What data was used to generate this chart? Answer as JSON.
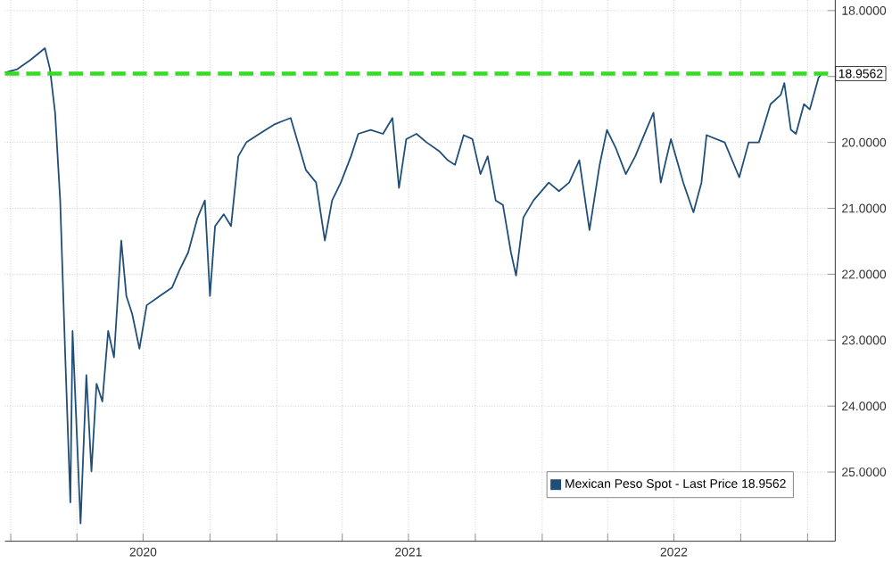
{
  "chart_data": {
    "type": "line",
    "x": [
      "2019-12-24",
      "2020-01-10",
      "2020-01-28",
      "2020-02-17",
      "2020-02-24",
      "2020-03-02",
      "2020-03-09",
      "2020-03-16",
      "2020-03-23",
      "2020-03-26",
      "2020-04-06",
      "2020-04-14",
      "2020-04-21",
      "2020-04-28",
      "2020-05-06",
      "2020-05-14",
      "2020-05-22",
      "2020-06-01",
      "2020-06-08",
      "2020-06-16",
      "2020-06-26",
      "2020-07-06",
      "2020-07-24",
      "2020-08-10",
      "2020-08-20",
      "2020-09-01",
      "2020-09-14",
      "2020-09-24",
      "2020-10-01",
      "2020-10-08",
      "2020-10-20",
      "2020-10-30",
      "2020-11-09",
      "2020-11-20",
      "2020-12-08",
      "2020-12-28",
      "2021-01-08",
      "2021-01-20",
      "2021-02-01",
      "2021-02-10",
      "2021-02-24",
      "2021-03-08",
      "2021-03-18",
      "2021-03-30",
      "2021-04-13",
      "2021-04-23",
      "2021-05-10",
      "2021-05-27",
      "2021-06-09",
      "2021-06-18",
      "2021-06-28",
      "2021-07-12",
      "2021-07-26",
      "2021-08-12",
      "2021-08-24",
      "2021-09-03",
      "2021-09-15",
      "2021-09-27",
      "2021-10-08",
      "2021-10-18",
      "2021-10-29",
      "2021-11-08",
      "2021-11-19",
      "2021-11-26",
      "2021-12-06",
      "2021-12-20",
      "2022-01-10",
      "2022-01-24",
      "2022-02-07",
      "2022-02-21",
      "2022-03-07",
      "2022-03-21",
      "2022-03-31",
      "2022-04-12",
      "2022-04-26",
      "2022-05-09",
      "2022-05-24",
      "2022-06-03",
      "2022-06-13",
      "2022-06-27",
      "2022-07-14",
      "2022-07-28",
      "2022-08-08",
      "2022-08-15",
      "2022-09-09",
      "2022-09-29",
      "2022-10-12",
      "2022-10-26",
      "2022-11-11",
      "2022-11-25",
      "2022-11-30",
      "2022-12-09",
      "2022-12-16",
      "2022-12-27",
      "2023-01-04",
      "2023-01-16",
      "2023-01-20"
    ],
    "series": [
      {
        "name": "Mexican Peso Spot - Last Price 18.9562",
        "color": "#1f4e79",
        "values": [
          18.94,
          18.89,
          18.75,
          18.57,
          18.89,
          19.55,
          20.88,
          23.26,
          25.46,
          22.86,
          25.78,
          23.53,
          24.99,
          23.66,
          23.93,
          22.86,
          23.26,
          21.49,
          22.33,
          22.6,
          23.13,
          22.47,
          22.33,
          22.2,
          21.94,
          21.67,
          21.14,
          20.88,
          22.33,
          21.27,
          21.09,
          21.27,
          20.21,
          20.0,
          19.87,
          19.73,
          19.68,
          19.63,
          20.08,
          20.42,
          20.61,
          21.49,
          20.88,
          20.61,
          20.21,
          19.87,
          19.81,
          19.87,
          19.63,
          20.69,
          19.95,
          19.87,
          20.0,
          20.13,
          20.27,
          20.34,
          19.89,
          19.95,
          20.48,
          20.21,
          20.88,
          20.95,
          21.67,
          22.02,
          21.14,
          20.88,
          20.61,
          20.74,
          20.61,
          20.27,
          21.33,
          20.34,
          19.81,
          20.08,
          20.48,
          20.21,
          19.81,
          19.55,
          20.61,
          19.95,
          20.61,
          21.06,
          20.61,
          19.89,
          20.0,
          20.53,
          20.0,
          20.0,
          19.42,
          19.28,
          19.1,
          19.81,
          19.87,
          19.42,
          19.5,
          19.02,
          18.96
        ]
      }
    ],
    "xlim": [
      "2019-12-24",
      "2023-02-08"
    ],
    "xticks": [
      {
        "value": "2020-01-01",
        "label": null
      },
      {
        "value": "2020-04-01",
        "label": null
      },
      {
        "value": "2020-07-01",
        "label": "2020"
      },
      {
        "value": "2020-10-01",
        "label": null
      },
      {
        "value": "2021-01-01",
        "label": null
      },
      {
        "value": "2021-04-01",
        "label": null
      },
      {
        "value": "2021-07-01",
        "label": "2021"
      },
      {
        "value": "2021-10-01",
        "label": null
      },
      {
        "value": "2022-01-01",
        "label": null
      },
      {
        "value": "2022-04-01",
        "label": null
      },
      {
        "value": "2022-07-01",
        "label": "2022"
      },
      {
        "value": "2022-10-01",
        "label": null
      },
      {
        "value": "2023-01-01",
        "label": null
      }
    ],
    "ylim": [
      26.05,
      17.84
    ],
    "yticks": [
      {
        "value": 18,
        "label": "18.0000"
      },
      {
        "value": 19,
        "label": null
      },
      {
        "value": 20,
        "label": "20.0000"
      },
      {
        "value": 21,
        "label": "21.0000"
      },
      {
        "value": 22,
        "label": "22.0000"
      },
      {
        "value": 23,
        "label": "23.0000"
      },
      {
        "value": 24,
        "label": "24.0000"
      },
      {
        "value": 25,
        "label": "25.0000"
      }
    ],
    "ref_lines": [
      {
        "axis": "y",
        "value": 18.9562,
        "label": "18.9562",
        "color": "#33dd22",
        "line_style": "dashed"
      }
    ],
    "grid": true,
    "legend": "bottom right"
  }
}
